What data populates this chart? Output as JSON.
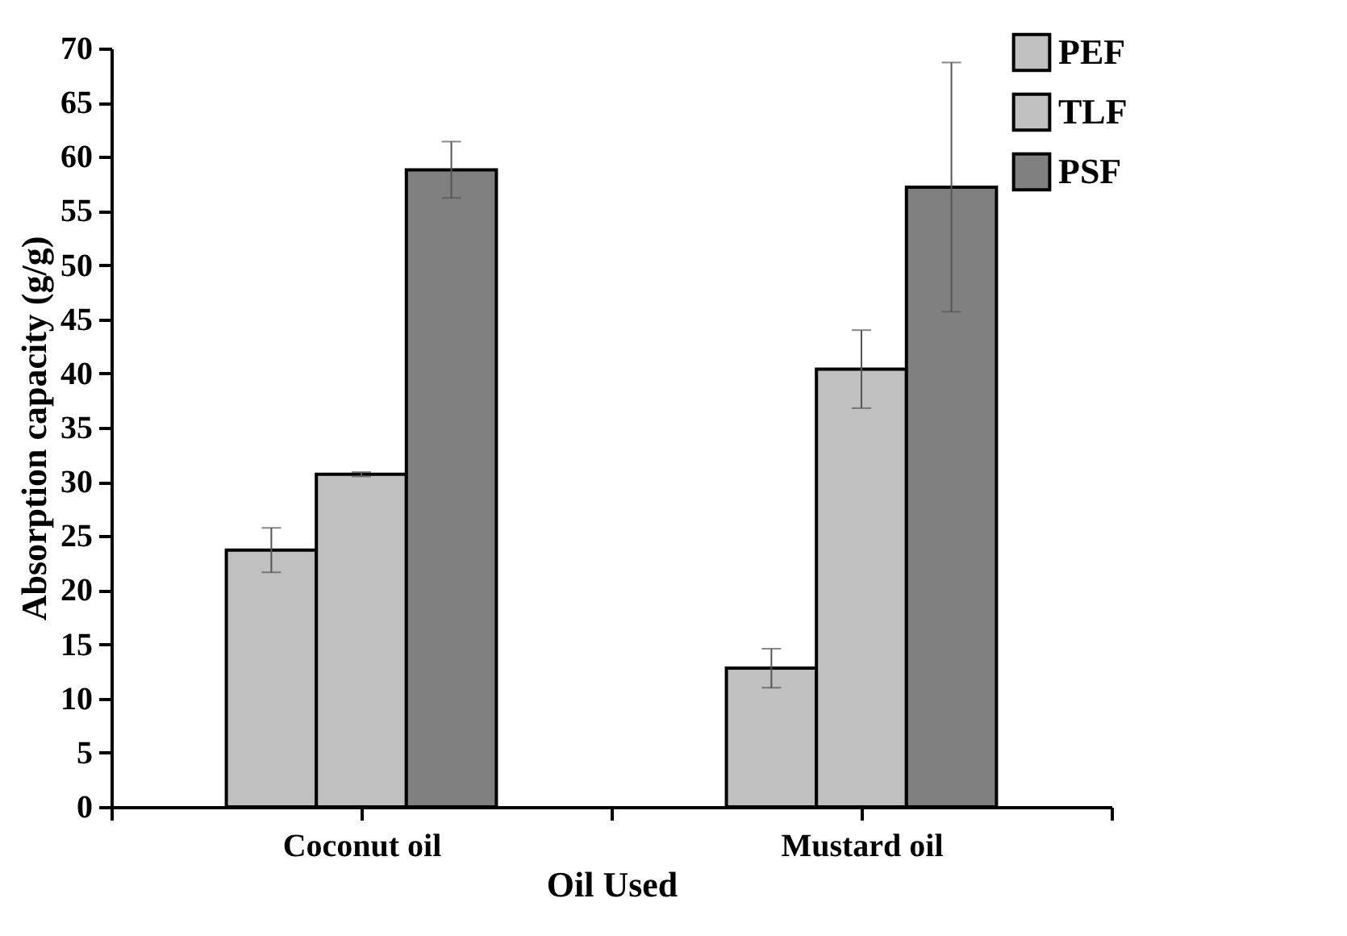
{
  "chart_data": {
    "type": "bar",
    "xlabel": "Oil Used",
    "ylabel": "Absorption capacity (g/g)",
    "categories": [
      "Coconut oil",
      "Mustard oil"
    ],
    "series": [
      {
        "name": "PEF",
        "color": "#c0c0c0",
        "values": [
          23.7,
          12.8
        ],
        "errors": [
          2.05,
          1.8
        ]
      },
      {
        "name": "TLF",
        "color": "#c0c0c0",
        "values": [
          30.7,
          40.4
        ],
        "errors": [
          0.2,
          3.6
        ]
      },
      {
        "name": "PSF",
        "color": "#808080",
        "values": [
          58.8,
          57.2
        ],
        "errors": [
          2.6,
          11.5
        ]
      }
    ],
    "ylim": [
      0,
      70
    ],
    "yticks": [
      0,
      5,
      10,
      15,
      20,
      25,
      30,
      35,
      40,
      45,
      50,
      55,
      60,
      65,
      70
    ],
    "grid": false,
    "legend": "top right"
  }
}
